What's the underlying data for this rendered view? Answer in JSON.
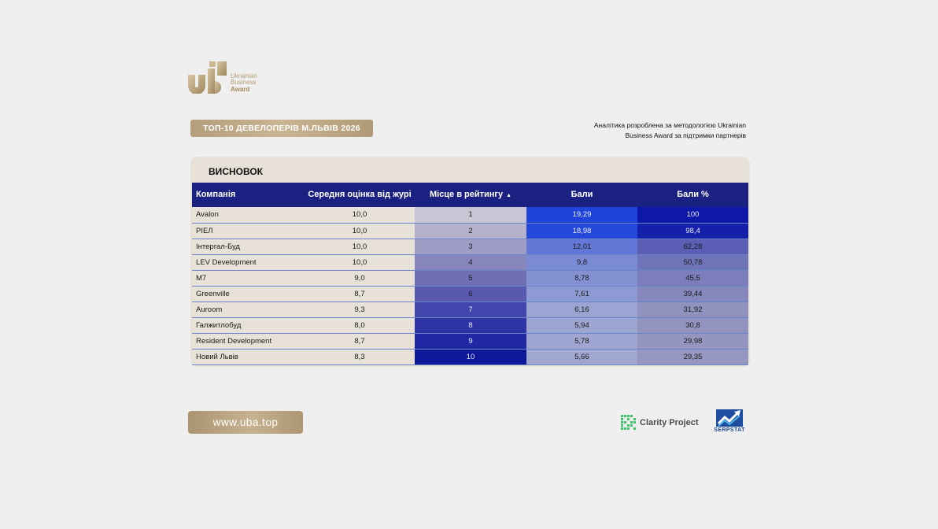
{
  "brand": {
    "logo_line1": "Ukrainian",
    "logo_line2": "Business",
    "logo_line3": "Award"
  },
  "header": {
    "title": "ТОП-10 ДЕВЕЛОПЕРІВ М.ЛЬВІВ 2026",
    "note_line1": "Аналітика розроблена за методологією Ukrainian",
    "note_line2": "Business Award за підтримки партнерів"
  },
  "card": {
    "title": "ВИСНОВОК"
  },
  "table": {
    "columns": [
      "Компанія",
      "Середня оцінка від журі",
      "Місце в рейтингу",
      "Бали",
      "Бали %"
    ],
    "sort_indicator": "▲",
    "rows": [
      {
        "company": "Avalon",
        "score": "10,0",
        "rank": "1",
        "points": "19,29",
        "percent": "100"
      },
      {
        "company": "РІЕЛ",
        "score": "10,0",
        "rank": "2",
        "points": "18,98",
        "percent": "98,4"
      },
      {
        "company": "Інтергал-Буд",
        "score": "10,0",
        "rank": "3",
        "points": "12,01",
        "percent": "62,28"
      },
      {
        "company": "LEV Development",
        "score": "10,0",
        "rank": "4",
        "points": "9,8",
        "percent": "50,78"
      },
      {
        "company": "M7",
        "score": "9,0",
        "rank": "5",
        "points": "8,78",
        "percent": "45,5"
      },
      {
        "company": "Greenville",
        "score": "8,7",
        "rank": "6",
        "points": "7,61",
        "percent": "39,44"
      },
      {
        "company": "Auroom",
        "score": "9,3",
        "rank": "7",
        "points": "6,16",
        "percent": "31,92"
      },
      {
        "company": "Галжитлобуд",
        "score": "8,0",
        "rank": "8",
        "points": "5,94",
        "percent": "30,8"
      },
      {
        "company": "Resident Development",
        "score": "8,7",
        "rank": "9",
        "points": "5,78",
        "percent": "29,98"
      },
      {
        "company": "Новий Львів",
        "score": "8,3",
        "rank": "10",
        "points": "5,66",
        "percent": "29,35"
      }
    ],
    "colors": {
      "header_bg": "#1b2180",
      "rank_scale": [
        "#c8c5d4",
        "#b3b1cb",
        "#9d9cc4",
        "#8685bc",
        "#6f6fb6",
        "#5959b0",
        "#4245ab",
        "#2e34a6",
        "#1f27a2",
        "#0f1799"
      ],
      "points_scale": [
        "#1f44d9",
        "#2547da",
        "#6378d6",
        "#7b8ad4",
        "#8391d3",
        "#8e9ad3",
        "#9ba4d2",
        "#9da5d1",
        "#9ea6d1",
        "#a0a8d1"
      ],
      "percent_scale": [
        "#0d18a8",
        "#1520aa",
        "#5a5fb5",
        "#6f74b9",
        "#7b7ebb",
        "#8587bd",
        "#9193bf",
        "#9294bf",
        "#9496c0",
        "#9597c0"
      ]
    }
  },
  "footer": {
    "url": "www.uba.top",
    "partner1": "Clarity Project",
    "partner2": "SERPSTAT"
  }
}
